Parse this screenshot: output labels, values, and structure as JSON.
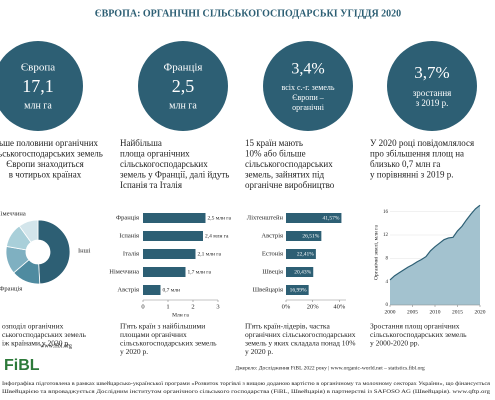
{
  "title": "ЄВРОПА: ОРГАНІЧНІ СІЛЬСЬКОГОСПОДАРСЬКІ УГІДДЯ 2020",
  "panels": [
    {
      "circle": [
        "Європа",
        "17,1",
        "млн га"
      ],
      "text": [
        "ільше половини органічних",
        "сільськогосподарських земель",
        "Європи знаходиться",
        "в чотирьох країнах"
      ],
      "caption": [
        "озподіл органічних",
        "ськогосподарських земель",
        "іж країнами у 2020 р."
      ]
    },
    {
      "circle": [
        "Франція",
        "2,5",
        "млн га"
      ],
      "text": [
        "Найбільша",
        "площа органічних",
        "сільськогосподарських",
        "земель у Франції, далі йдуть",
        "Іспанія та Італія"
      ],
      "caption": [
        "П'ять країн з найбільшими",
        "площами органічних",
        "сільськогосподарських земель",
        "у 2020 р."
      ]
    },
    {
      "circle": [
        "3,4%",
        "всіх с.-г. земель",
        "Європи –",
        "органічні"
      ],
      "text": [
        "15 країн мають",
        "10% або більше",
        "сільськогосподарських",
        "земель, зайнятих під",
        "органічне виробництво"
      ],
      "caption": [
        "П'ять країн-лідерів, частка",
        "органічних сільськогосподарських",
        "земель у яких складала понад 10%",
        "у 2020 р."
      ]
    },
    {
      "circle": [
        "3,7%",
        "зростання",
        "з 2019 р."
      ],
      "text": [
        "У 2020 році повідомлялося",
        "про збільшення площ на",
        "близько 0,7 млн га",
        "у порівнянні з 2019 р."
      ],
      "caption": [
        "Зростання площ органічних",
        "сільськогосподарських земель",
        "у 2000-2020 рр."
      ]
    }
  ],
  "chart_data": [
    {
      "type": "pie",
      "categories": [
        "Інші",
        "Франція",
        null,
        null,
        "Німеччина"
      ],
      "values": [
        8.4,
        2.5,
        2.4,
        2.1,
        1.7
      ],
      "colors": [
        "#2d5f74",
        "#4f8ba0",
        "#7fb0c1",
        "#a9cfd9",
        "#d3e5eb"
      ]
    },
    {
      "type": "hbar",
      "categories": [
        "Франція",
        "Іспанія",
        "Італія",
        "Німеччина",
        "Австрія"
      ],
      "values": [
        2.5,
        2.4,
        2.1,
        1.7,
        0.7
      ],
      "value_labels": [
        "2,5 млн га",
        "2,4 млн га",
        "2,1 млн га",
        "1,7 млн га",
        "0,7 млн"
      ],
      "xlim": [
        0,
        3
      ],
      "xticks": [
        0,
        1,
        2,
        3
      ],
      "xlabel": "Млн га",
      "color": "#2d5f74",
      "labels_inside": false
    },
    {
      "type": "hbar",
      "categories": [
        "Ліхтенштейн",
        "Австрія",
        "Естонія",
        "Швеція",
        "Швейцарія"
      ],
      "values": [
        41.57,
        26.51,
        22.41,
        20.43,
        16.99
      ],
      "value_labels": [
        "41,57%",
        "26,51%",
        "22,41%",
        "20,43%",
        "16,99%"
      ],
      "xlim": [
        0,
        45
      ],
      "xticks": [
        {
          "value": 0,
          "label": "0%"
        },
        {
          "value": 20,
          "label": "20%"
        },
        {
          "value": 40,
          "label": "40%"
        }
      ],
      "color": "#2d5f74",
      "labels_inside": true
    },
    {
      "type": "area",
      "x": [
        2000,
        2001,
        2002,
        2003,
        2004,
        2005,
        2006,
        2007,
        2008,
        2009,
        2010,
        2011,
        2012,
        2013,
        2014,
        2015,
        2016,
        2017,
        2018,
        2019,
        2020
      ],
      "values": [
        4.3,
        5.0,
        5.5,
        6.0,
        6.5,
        6.9,
        7.4,
        7.8,
        8.3,
        9.3,
        10.0,
        10.6,
        11.2,
        11.5,
        11.6,
        12.7,
        13.5,
        14.6,
        15.6,
        16.5,
        17.1
      ],
      "xlim": [
        2000,
        2020
      ],
      "xticks": [
        2000,
        2005,
        2010,
        2015,
        2020
      ],
      "ylim": [
        0,
        18
      ],
      "yticks": [
        0,
        4,
        8,
        12,
        16
      ],
      "ylabel": "Органічні землі, млн га",
      "color": "#2d5f74",
      "fill": "#a3c2cf",
      "grid": true
    }
  ],
  "footer": {
    "logo": "FiBL",
    "site": "www.fibl.org",
    "source": "Джерело: Дослідження FiBL 2022 року | www.organic-world.net – statistics.fibl.org",
    "note": [
      "Інфографіка підготовлена в рамках швейцарсько-української програми «Розвиток торгівлі з вищою доданою вартістю в органічному та молочному секторах України», що фінансується",
      "Швейцарією та впроваджується Дослідним інститутом органічного сільського господарства (FiBL, Швейцарія) в партнерстві із SAFOSO AG (Швейцарія). www.qftp.org"
    ]
  }
}
